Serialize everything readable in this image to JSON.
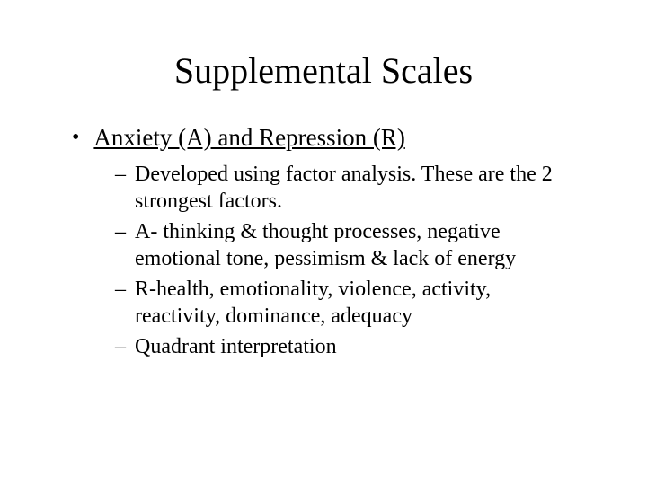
{
  "title": "Supplemental Scales",
  "heading": "Anxiety (A) and Repression (R)",
  "subpoints": [
    "Developed using factor analysis.  These are the 2 strongest factors.",
    "A- thinking & thought processes, negative emotional tone, pessimism & lack of energy",
    "R-health, emotionality, violence, activity, reactivity, dominance, adequacy",
    "Quadrant interpretation"
  ],
  "colors": {
    "background": "#ffffff",
    "text": "#000000"
  },
  "fonts": {
    "title_size": 40,
    "level1_size": 27,
    "level2_size": 24
  }
}
